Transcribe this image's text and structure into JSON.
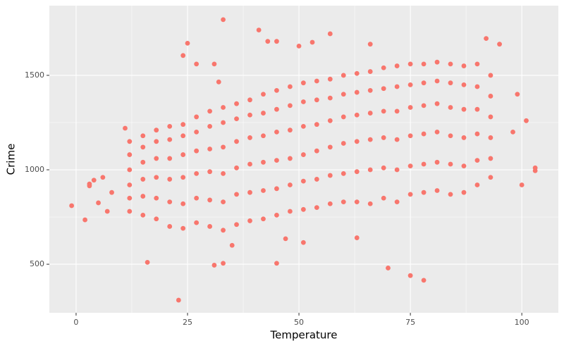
{
  "chart_data": {
    "type": "scatter",
    "x_label": "Temperature",
    "y_label": "Crime",
    "color": "#f8766d",
    "xlim": [
      -6,
      108.2
    ],
    "ylim": [
      243,
      1869
    ],
    "xticks": [
      0,
      25,
      50,
      75,
      100
    ],
    "yticks": [
      500,
      1000,
      1500
    ],
    "grid": true,
    "x": [
      -1,
      2,
      3,
      3,
      4,
      5,
      6,
      7,
      8,
      23,
      16,
      31,
      33,
      45,
      70,
      75,
      78,
      33,
      41,
      25,
      24,
      27,
      31,
      32,
      43,
      45,
      50,
      57,
      53,
      66,
      92,
      95,
      101,
      103,
      103,
      100,
      98,
      99,
      11,
      63,
      51,
      35,
      47,
      12,
      12,
      12,
      12,
      12,
      12,
      15,
      15,
      15,
      15,
      15,
      15,
      18,
      18,
      18,
      18,
      18,
      18,
      21,
      21,
      21,
      21,
      21,
      21,
      24,
      24,
      24,
      24,
      24,
      24,
      27,
      27,
      27,
      27,
      27,
      27,
      30,
      30,
      30,
      30,
      30,
      30,
      33,
      33,
      33,
      33,
      33,
      33,
      36,
      36,
      36,
      36,
      36,
      36,
      39,
      39,
      39,
      39,
      39,
      39,
      42,
      42,
      42,
      42,
      42,
      42,
      45,
      45,
      45,
      45,
      45,
      45,
      48,
      48,
      48,
      48,
      48,
      48,
      51,
      51,
      51,
      51,
      51,
      51,
      54,
      54,
      54,
      54,
      54,
      54,
      57,
      57,
      57,
      57,
      57,
      57,
      60,
      60,
      60,
      60,
      60,
      60,
      63,
      63,
      63,
      63,
      63,
      63,
      66,
      66,
      66,
      66,
      66,
      66,
      69,
      69,
      69,
      69,
      69,
      69,
      72,
      72,
      72,
      72,
      72,
      72,
      75,
      75,
      75,
      75,
      75,
      75,
      78,
      78,
      78,
      78,
      78,
      78,
      81,
      81,
      81,
      81,
      81,
      81,
      84,
      84,
      84,
      84,
      84,
      84,
      87,
      87,
      87,
      87,
      87,
      87,
      90,
      90,
      90,
      90,
      90,
      90,
      93,
      93,
      93,
      93,
      93,
      93
    ],
    "y": [
      810,
      735,
      915,
      925,
      945,
      825,
      960,
      780,
      880,
      310,
      510,
      495,
      505,
      505,
      480,
      440,
      415,
      1795,
      1740,
      1670,
      1605,
      1560,
      1560,
      1465,
      1680,
      1680,
      1655,
      1720,
      1675,
      1665,
      1695,
      1665,
      1260,
      995,
      1010,
      920,
      1200,
      1400,
      1220,
      640,
      615,
      600,
      635,
      780,
      850,
      920,
      1000,
      1080,
      1150,
      760,
      860,
      950,
      1040,
      1120,
      1180,
      740,
      850,
      960,
      1060,
      1150,
      1210,
      700,
      830,
      950,
      1060,
      1160,
      1230,
      690,
      820,
      960,
      1080,
      1180,
      1240,
      720,
      850,
      980,
      1100,
      1200,
      1280,
      700,
      840,
      990,
      1110,
      1230,
      1310,
      680,
      830,
      980,
      1120,
      1250,
      1330,
      710,
      870,
      1010,
      1150,
      1270,
      1350,
      730,
      880,
      1030,
      1170,
      1290,
      1370,
      740,
      890,
      1040,
      1180,
      1300,
      1400,
      760,
      900,
      1050,
      1200,
      1320,
      1420,
      780,
      920,
      1060,
      1210,
      1340,
      1440,
      790,
      940,
      1080,
      1230,
      1360,
      1460,
      800,
      950,
      1100,
      1240,
      1370,
      1470,
      820,
      970,
      1120,
      1260,
      1380,
      1480,
      830,
      980,
      1140,
      1280,
      1400,
      1500,
      830,
      990,
      1150,
      1290,
      1410,
      1510,
      820,
      1000,
      1160,
      1300,
      1420,
      1520,
      850,
      1010,
      1170,
      1310,
      1430,
      1540,
      830,
      1000,
      1160,
      1310,
      1440,
      1550,
      870,
      1020,
      1180,
      1330,
      1450,
      1560,
      880,
      1030,
      1190,
      1340,
      1460,
      1560,
      890,
      1040,
      1200,
      1350,
      1470,
      1570,
      870,
      1030,
      1180,
      1330,
      1460,
      1560,
      880,
      1020,
      1170,
      1320,
      1450,
      1550,
      920,
      1050,
      1190,
      1320,
      1440,
      1560,
      960,
      1060,
      1170,
      1280,
      1390,
      1500
    ]
  }
}
